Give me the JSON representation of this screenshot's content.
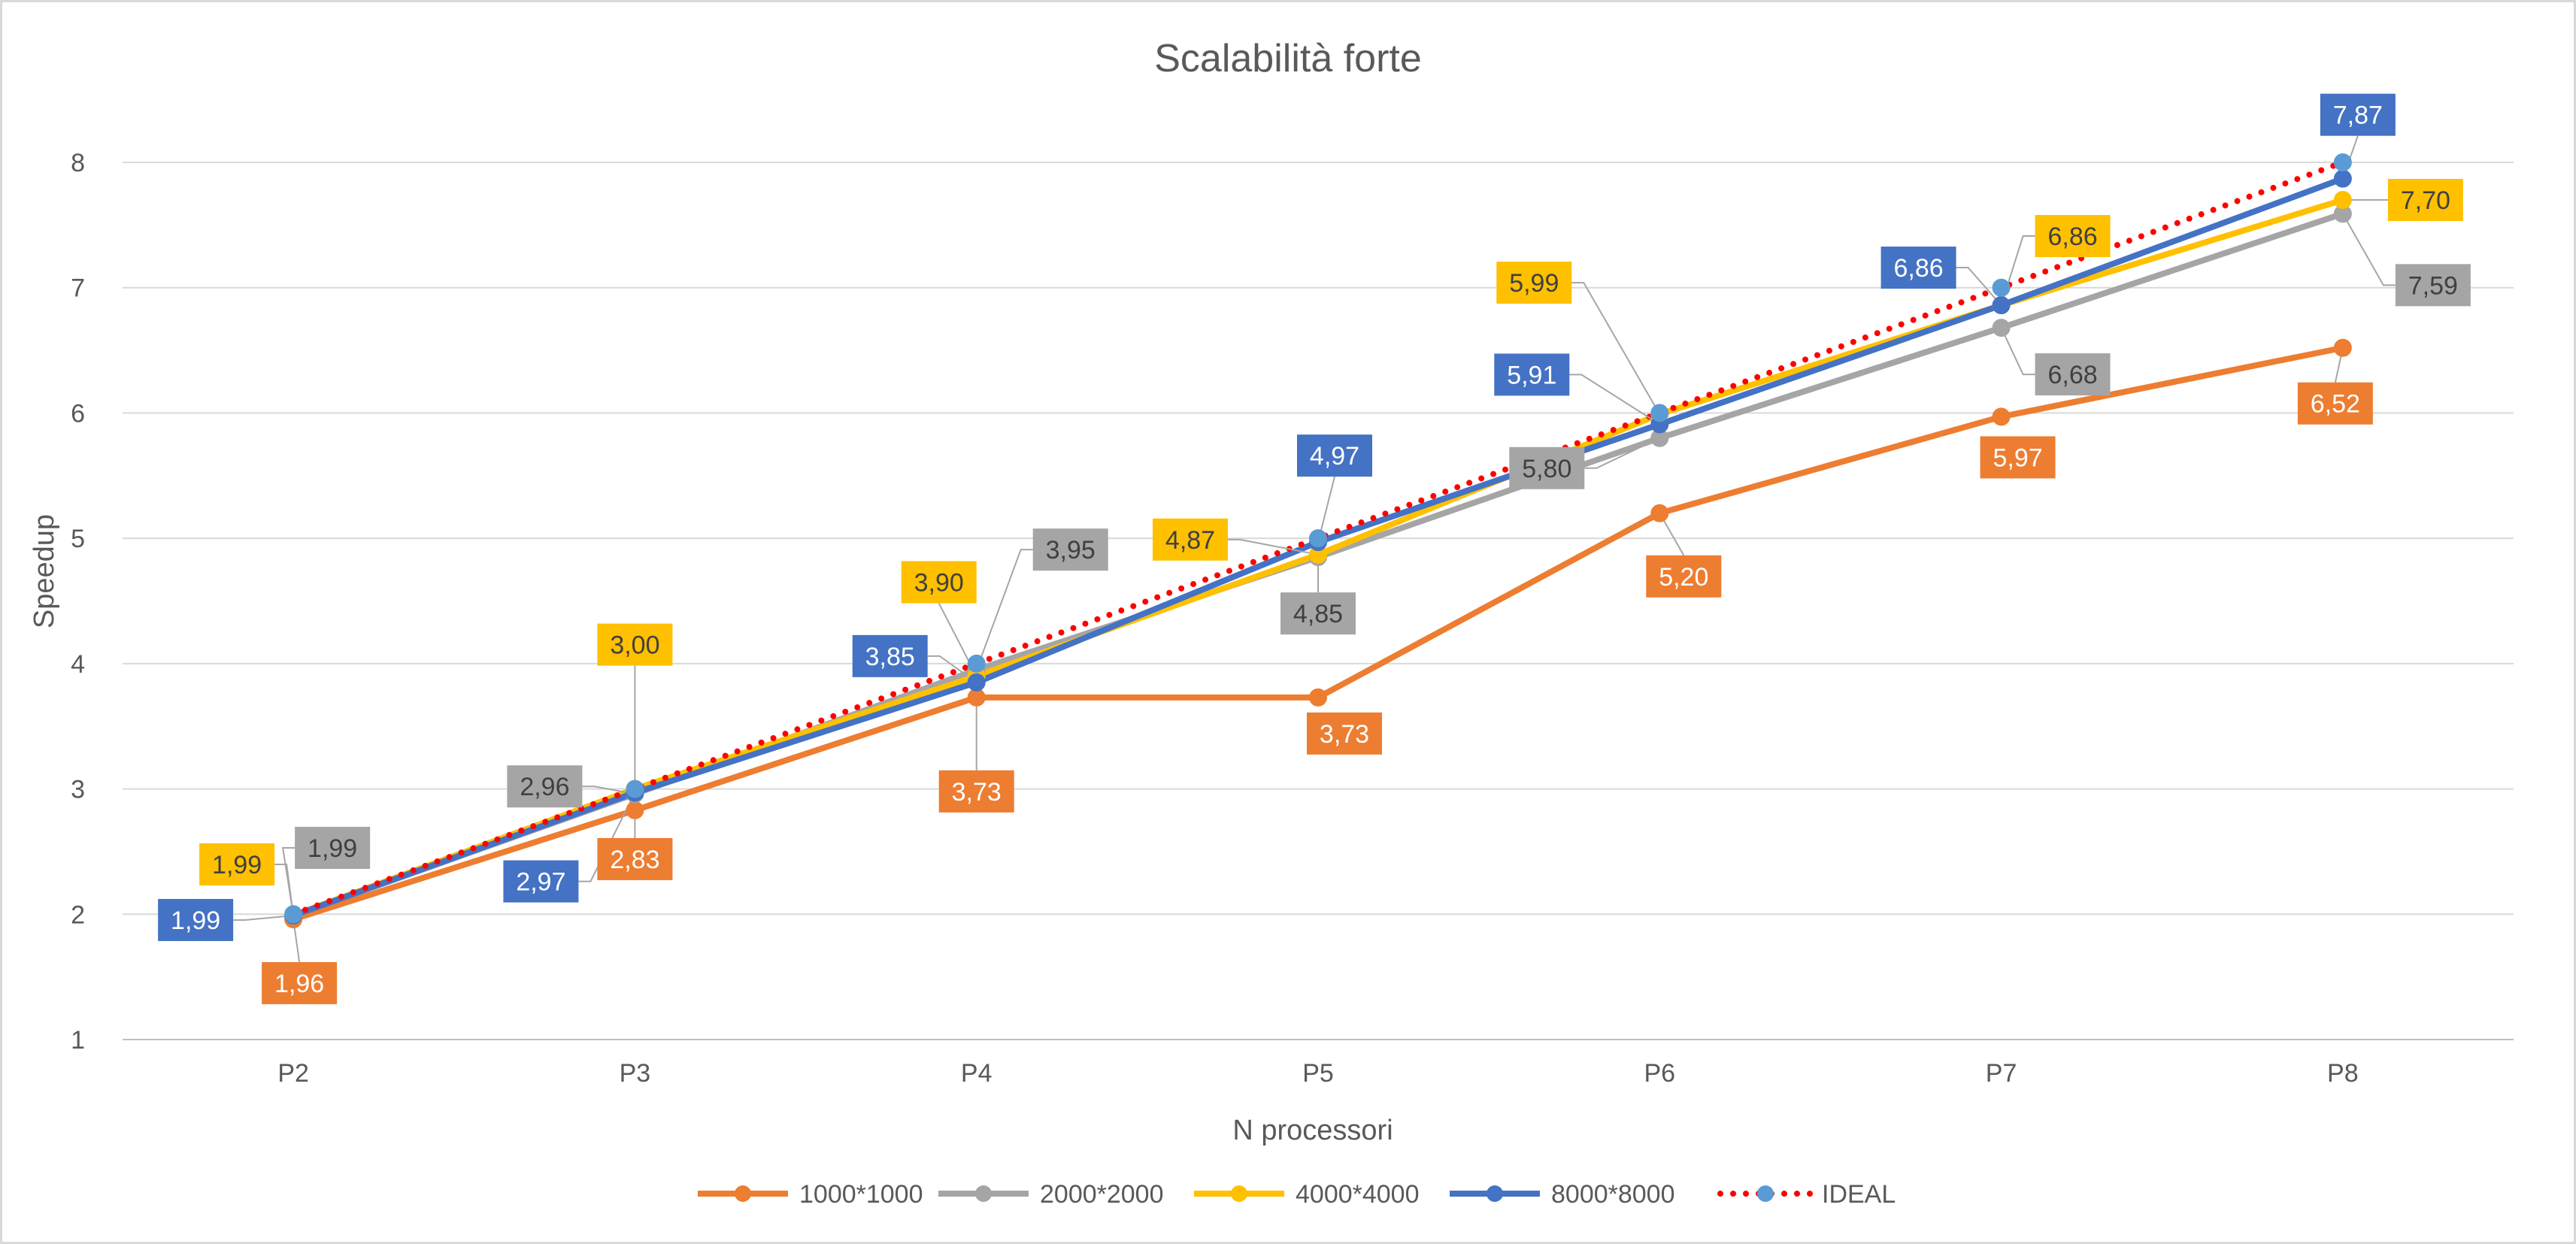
{
  "chart_data": {
    "type": "line",
    "title": "Scalabilità forte",
    "xlabel": "N processori",
    "ylabel": "Speedup",
    "categories": [
      "P2",
      "P3",
      "P4",
      "P5",
      "P6",
      "P7",
      "P8"
    ],
    "ylim": [
      1,
      8
    ],
    "yticks": [
      "1",
      "2",
      "3",
      "4",
      "5",
      "6",
      "7",
      "8"
    ],
    "grid": true,
    "legend_position": "bottom",
    "series": [
      {
        "name": "1000*1000",
        "color": "#ED7D31",
        "line_style": "solid",
        "values": [
          1.96,
          2.83,
          3.73,
          3.73,
          5.2,
          5.97,
          6.52
        ],
        "labels": [
          "1,96",
          "2,83",
          "3,73",
          "3,73",
          "5,20",
          "5,97",
          "6,52"
        ],
        "label_text_color": "#ffffff"
      },
      {
        "name": "2000*2000",
        "color": "#A5A5A5",
        "line_style": "solid",
        "values": [
          1.99,
          2.96,
          3.95,
          4.85,
          5.8,
          6.68,
          7.59
        ],
        "labels": [
          "1,99",
          "2,96",
          "3,95",
          "4,85",
          "5,80",
          "6,68",
          "7,59"
        ],
        "label_text_color": "#404040"
      },
      {
        "name": "4000*4000",
        "color": "#FFC000",
        "line_style": "solid",
        "values": [
          1.99,
          3.0,
          3.9,
          4.87,
          5.99,
          6.86,
          7.7
        ],
        "labels": [
          "1,99",
          "3,00",
          "3,90",
          "4,87",
          "5,99",
          "6,86",
          "7,70"
        ],
        "label_text_color": "#404040"
      },
      {
        "name": "8000*8000",
        "color": "#4472C4",
        "line_style": "solid",
        "values": [
          1.99,
          2.97,
          3.85,
          4.97,
          5.91,
          6.86,
          7.87
        ],
        "labels": [
          "1,99",
          "2,97",
          "3,85",
          "4,97",
          "5,91",
          "6,86",
          "7,87"
        ],
        "label_text_color": "#ffffff"
      },
      {
        "name": "IDEAL",
        "color": "#FF0000",
        "marker_color": "#5B9BD5",
        "line_style": "dotted",
        "values": [
          2,
          3,
          4,
          5,
          6,
          7,
          8
        ],
        "labels": []
      }
    ]
  }
}
